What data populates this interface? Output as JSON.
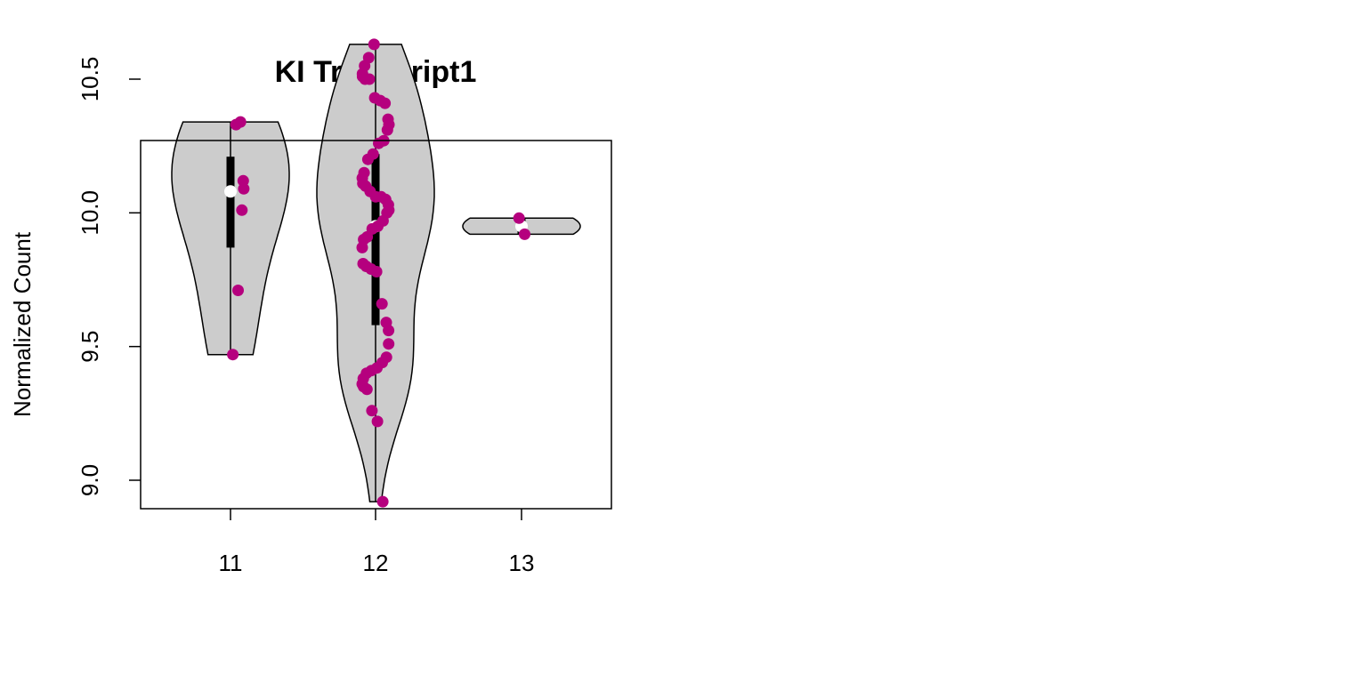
{
  "chart_data": {
    "type": "violin",
    "title": "KI Transcript1",
    "xlabel": "",
    "ylabel": "Normalized Count",
    "categories": [
      "11",
      "12",
      "13"
    ],
    "y_ticks": [
      "9.0",
      "9.5",
      "10.0",
      "10.5"
    ],
    "ylim": [
      8.85,
      10.7
    ],
    "grid": false,
    "legend": "none",
    "colors": {
      "violin_fill": "#cccccc",
      "violin_stroke": "#000000",
      "point": "#b5007e",
      "median": "#ffffff",
      "box": "#000000"
    },
    "groups": [
      {
        "category": "11",
        "min": 9.47,
        "max": 10.34,
        "q1": 9.87,
        "q3": 10.21,
        "median": 10.08,
        "points": [
          10.33,
          10.34,
          10.12,
          10.09,
          10.01,
          9.71,
          9.47
        ]
      },
      {
        "category": "12",
        "min": 8.92,
        "max": 10.63,
        "q1": 9.58,
        "q3": 10.22,
        "median": 9.95,
        "points": [
          10.63,
          10.58,
          10.55,
          10.52,
          10.51,
          10.5,
          10.5,
          10.43,
          10.42,
          10.41,
          10.35,
          10.33,
          10.31,
          10.27,
          10.26,
          10.22,
          10.2,
          10.15,
          10.13,
          10.11,
          10.1,
          10.08,
          10.06,
          10.06,
          10.05,
          10.03,
          10.01,
          10.0,
          9.97,
          9.95,
          9.94,
          9.91,
          9.9,
          9.87,
          9.81,
          9.8,
          9.79,
          9.78,
          9.66,
          9.59,
          9.56,
          9.51,
          9.46,
          9.44,
          9.42,
          9.41,
          9.4,
          9.38,
          9.36,
          9.35,
          9.34,
          9.26,
          9.22,
          8.92
        ]
      },
      {
        "category": "13",
        "min": 9.92,
        "max": 9.98,
        "q1": 9.92,
        "q3": 9.98,
        "median": 9.95,
        "points": [
          9.98,
          9.92
        ]
      }
    ]
  }
}
